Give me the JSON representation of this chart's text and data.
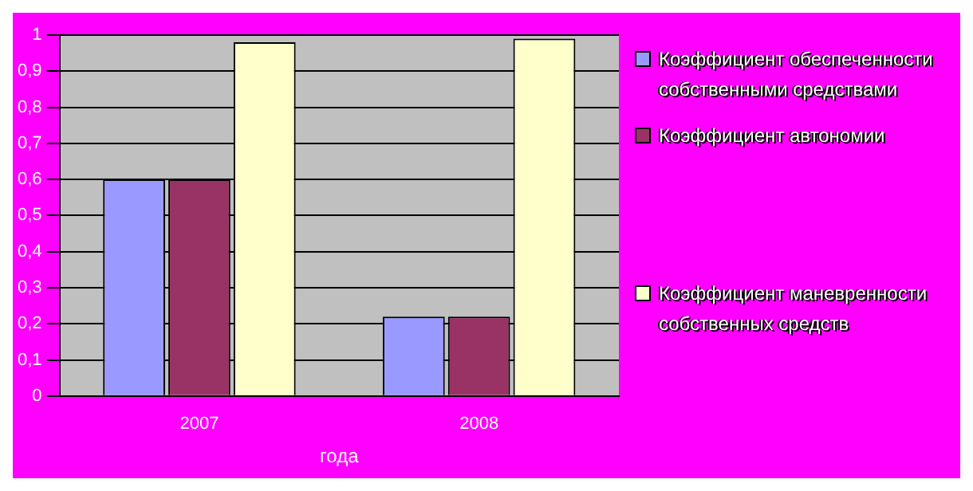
{
  "chart_data": {
    "type": "bar",
    "xlabel": "года",
    "categories": [
      "2007",
      "2008"
    ],
    "series": [
      {
        "name": "Коэффициент обеспеченности собственными средствами",
        "color": "#9999ff",
        "values": [
          0.6,
          0.22
        ]
      },
      {
        "name": "Коэффициент автономии",
        "color": "#993366",
        "values": [
          0.6,
          0.22
        ]
      },
      {
        "name": "Коэффициент маневренности собственных средств",
        "color": "#ffffcc",
        "values": [
          0.98,
          0.99
        ]
      }
    ],
    "ylim": [
      0,
      1
    ],
    "yticks": [
      0,
      {
        "value": 0.1,
        "label": "0,1"
      },
      {
        "value": 0.2,
        "label": "0,2"
      },
      {
        "value": 0.3,
        "label": "0,3"
      },
      {
        "value": 0.4,
        "label": "0,4"
      },
      {
        "value": 0.5,
        "label": "0,5"
      },
      {
        "value": 0.6,
        "label": "0,6"
      },
      {
        "value": 0.7,
        "label": "0,7"
      },
      {
        "value": 0.8,
        "label": "0,8"
      },
      {
        "value": 0.9,
        "label": "0,9"
      },
      1
    ],
    "grid": "y",
    "legend": "right"
  }
}
